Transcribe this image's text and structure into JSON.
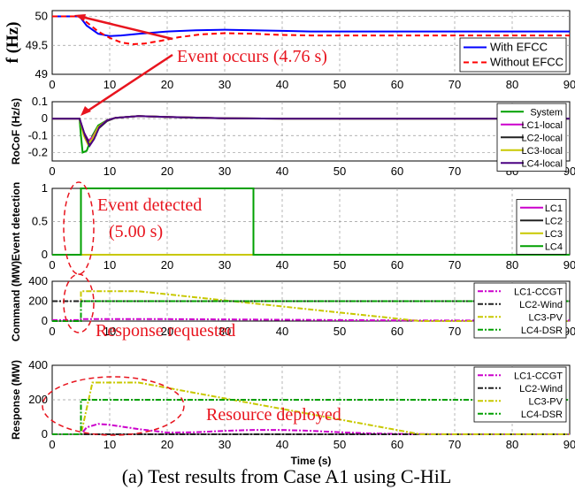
{
  "caption": "(a) Test results from Case A1 using C-HiL",
  "colors": {
    "blue": "#0000ff",
    "red": "#ff0000",
    "green": "#00a000",
    "magenta": "#cc00cc",
    "black": "#222222",
    "olive": "#c8c800",
    "indigo": "#4b0082",
    "annot_red": "#e8141e"
  },
  "chart_data": [
    {
      "type": "line",
      "ylabel": "f (Hz)",
      "xlim": [
        0,
        90
      ],
      "ylim": [
        49,
        50.1
      ],
      "yticks": [
        "49",
        "49.5",
        "50"
      ],
      "xticks": [
        "0",
        "10",
        "20",
        "30",
        "40",
        "50",
        "60",
        "70",
        "80",
        "90"
      ],
      "grid": true,
      "legend": "bottom-right",
      "series": [
        {
          "name": "With EFCC",
          "color": "blue",
          "dash": "none",
          "points": [
            [
              0,
              50
            ],
            [
              4.76,
              50
            ],
            [
              6,
              49.84
            ],
            [
              8,
              49.7
            ],
            [
              10,
              49.66
            ],
            [
              12,
              49.67
            ],
            [
              15,
              49.7
            ],
            [
              20,
              49.74
            ],
            [
              25,
              49.76
            ],
            [
              30,
              49.77
            ],
            [
              35,
              49.76
            ],
            [
              40,
              49.75
            ],
            [
              45,
              49.74
            ],
            [
              50,
              49.74
            ],
            [
              60,
              49.74
            ],
            [
              70,
              49.74
            ],
            [
              80,
              49.74
            ],
            [
              90,
              49.74
            ]
          ]
        },
        {
          "name": "Without EFCC",
          "color": "red",
          "dash": "6,4",
          "points": [
            [
              0,
              50
            ],
            [
              4.76,
              50
            ],
            [
              6,
              49.9
            ],
            [
              8,
              49.74
            ],
            [
              10,
              49.63
            ],
            [
              12,
              49.55
            ],
            [
              14,
              49.52
            ],
            [
              16,
              49.53
            ],
            [
              19,
              49.58
            ],
            [
              22,
              49.64
            ],
            [
              26,
              49.69
            ],
            [
              30,
              49.71
            ],
            [
              35,
              49.7
            ],
            [
              40,
              49.68
            ],
            [
              45,
              49.67
            ],
            [
              50,
              49.67
            ],
            [
              60,
              49.67
            ],
            [
              70,
              49.67
            ],
            [
              80,
              49.67
            ],
            [
              90,
              49.67
            ]
          ]
        }
      ],
      "annotations": [
        {
          "text": "Event occurs (4.76 s)"
        }
      ]
    },
    {
      "type": "line",
      "ylabel": "RoCoF (Hz/s)",
      "xlim": [
        0,
        90
      ],
      "ylim": [
        -0.25,
        0.1
      ],
      "yticks": [
        "0.1",
        "0",
        "-0.1",
        "-0.2"
      ],
      "xticks": [
        "0",
        "10",
        "20",
        "30",
        "40",
        "50",
        "60",
        "70",
        "80",
        "90"
      ],
      "grid": true,
      "legend": "top-right",
      "series": [
        {
          "name": "System",
          "color": "green",
          "points": [
            [
              0,
              0
            ],
            [
              4.76,
              0
            ],
            [
              5,
              -0.1
            ],
            [
              5.3,
              -0.2
            ],
            [
              6,
              -0.19
            ],
            [
              7,
              -0.1
            ],
            [
              8,
              -0.04
            ],
            [
              9.5,
              -0.01
            ],
            [
              11,
              0.005
            ],
            [
              15,
              0.015
            ],
            [
              20,
              0.01
            ],
            [
              25,
              0.005
            ],
            [
              30,
              0.002
            ],
            [
              40,
              0
            ],
            [
              90,
              0
            ]
          ]
        },
        {
          "name": "LC1-local",
          "color": "magenta",
          "points": [
            [
              0,
              0
            ],
            [
              4.76,
              0
            ],
            [
              5.5,
              -0.08
            ],
            [
              6.3,
              -0.13
            ],
            [
              7,
              -0.11
            ],
            [
              8,
              -0.05
            ],
            [
              9.5,
              -0.01
            ],
            [
              11,
              0.005
            ],
            [
              15,
              0.015
            ],
            [
              20,
              0.01
            ],
            [
              30,
              0.002
            ],
            [
              40,
              0
            ],
            [
              90,
              0
            ]
          ]
        },
        {
          "name": "LC2-local",
          "color": "black",
          "points": [
            [
              0,
              0
            ],
            [
              4.76,
              0
            ],
            [
              5.6,
              -0.09
            ],
            [
              6.4,
              -0.14
            ],
            [
              7.2,
              -0.12
            ],
            [
              8,
              -0.06
            ],
            [
              9.5,
              -0.015
            ],
            [
              11,
              0.005
            ],
            [
              15,
              0.015
            ],
            [
              20,
              0.01
            ],
            [
              30,
              0.002
            ],
            [
              40,
              0
            ],
            [
              90,
              0
            ]
          ]
        },
        {
          "name": "LC3-local",
          "color": "olive",
          "points": [
            [
              0,
              0
            ],
            [
              4.76,
              0
            ],
            [
              5.5,
              -0.1
            ],
            [
              6.2,
              -0.15
            ],
            [
              7,
              -0.12
            ],
            [
              8,
              -0.05
            ],
            [
              9.5,
              -0.01
            ],
            [
              11,
              0.005
            ],
            [
              15,
              0.015
            ],
            [
              20,
              0.01
            ],
            [
              30,
              0.002
            ],
            [
              40,
              0
            ],
            [
              90,
              0
            ]
          ]
        },
        {
          "name": "LC4-local",
          "color": "indigo",
          "points": [
            [
              0,
              0
            ],
            [
              4.76,
              0
            ],
            [
              5.7,
              -0.1
            ],
            [
              6.5,
              -0.16
            ],
            [
              7.3,
              -0.12
            ],
            [
              8.2,
              -0.05
            ],
            [
              9.5,
              -0.01
            ],
            [
              11,
              0.005
            ],
            [
              15,
              0.015
            ],
            [
              20,
              0.01
            ],
            [
              30,
              0.002
            ],
            [
              40,
              0
            ],
            [
              90,
              0
            ]
          ]
        }
      ]
    },
    {
      "type": "line",
      "ylabel": "Event detection",
      "xlim": [
        0,
        90
      ],
      "ylim": [
        0,
        1
      ],
      "yticks": [
        "1",
        "0.5",
        "0"
      ],
      "xticks": [
        "0",
        "10",
        "20",
        "30",
        "40",
        "50",
        "60",
        "70",
        "80",
        "90"
      ],
      "grid": true,
      "legend": "right",
      "series": [
        {
          "name": "LC1",
          "color": "magenta",
          "points": [
            [
              0,
              0
            ],
            [
              90,
              0
            ]
          ]
        },
        {
          "name": "LC2",
          "color": "black",
          "points": [
            [
              0,
              0
            ],
            [
              90,
              0
            ]
          ]
        },
        {
          "name": "LC3",
          "color": "olive",
          "points": [
            [
              0,
              0
            ],
            [
              90,
              0
            ]
          ]
        },
        {
          "name": "LC4",
          "color": "green",
          "points": [
            [
              0,
              0
            ],
            [
              5,
              0
            ],
            [
              5,
              1
            ],
            [
              35,
              1
            ],
            [
              35,
              0
            ],
            [
              90,
              0
            ]
          ]
        }
      ],
      "annotations": [
        {
          "text": "Event detected"
        },
        {
          "text": "(5.00 s)"
        }
      ]
    },
    {
      "type": "line",
      "ylabel": "Command (MW)",
      "xlim": [
        0,
        90
      ],
      "ylim": [
        0,
        400
      ],
      "yticks": [
        "400",
        "200",
        "0"
      ],
      "xticks": [
        "0",
        "10",
        "20",
        "30",
        "40",
        "50",
        "60",
        "70",
        "80",
        "90"
      ],
      "grid": true,
      "legend": "top-right",
      "series": [
        {
          "name": "LC1-CCGT",
          "color": "magenta",
          "dash": "6,2,2,2",
          "points": [
            [
              0,
              10
            ],
            [
              5,
              10
            ],
            [
              5,
              20
            ],
            [
              20,
              20
            ],
            [
              35,
              15
            ],
            [
              50,
              10
            ],
            [
              65,
              5
            ],
            [
              90,
              5
            ]
          ]
        },
        {
          "name": "LC2-Wind",
          "color": "black",
          "dash": "6,2,2,2",
          "points": [
            [
              0,
              200
            ],
            [
              90,
              200
            ]
          ]
        },
        {
          "name": "LC3-PV",
          "color": "olive",
          "dash": "6,2,2,2",
          "points": [
            [
              0,
              0
            ],
            [
              5,
              0
            ],
            [
              5,
              300
            ],
            [
              15,
              300
            ],
            [
              64,
              0
            ],
            [
              90,
              0
            ]
          ]
        },
        {
          "name": "LC4-DSR",
          "color": "green",
          "dash": "6,2,2,2",
          "points": [
            [
              0,
              0
            ],
            [
              5,
              0
            ],
            [
              5,
              200
            ],
            [
              90,
              200
            ]
          ]
        }
      ],
      "annotations": [
        {
          "text": "Response requested"
        }
      ]
    },
    {
      "type": "line",
      "ylabel": "Response (MW)",
      "xlabel": "Time (s)",
      "xlim": [
        0,
        90
      ],
      "ylim": [
        0,
        400
      ],
      "yticks": [
        "400",
        "200",
        "0"
      ],
      "xticks": [
        "0",
        "10",
        "20",
        "30",
        "40",
        "50",
        "60",
        "70",
        "80",
        "90"
      ],
      "grid": true,
      "legend": "top-right",
      "series": [
        {
          "name": "LC1-CCGT",
          "color": "magenta",
          "dash": "6,2,2,2",
          "points": [
            [
              0,
              0
            ],
            [
              5,
              0
            ],
            [
              6,
              40
            ],
            [
              8,
              60
            ],
            [
              10,
              55
            ],
            [
              15,
              30
            ],
            [
              20,
              10
            ],
            [
              25,
              12
            ],
            [
              30,
              20
            ],
            [
              35,
              25
            ],
            [
              40,
              25
            ],
            [
              45,
              20
            ],
            [
              50,
              12
            ],
            [
              55,
              5
            ],
            [
              60,
              2
            ],
            [
              70,
              0
            ],
            [
              90,
              0
            ]
          ]
        },
        {
          "name": "LC2-Wind",
          "color": "black",
          "dash": "6,2,2,2",
          "points": [
            [
              0,
              0
            ],
            [
              90,
              0
            ]
          ]
        },
        {
          "name": "LC3-PV",
          "color": "olive",
          "dash": "6,2,2,2",
          "points": [
            [
              0,
              0
            ],
            [
              5,
              0
            ],
            [
              7,
              300
            ],
            [
              15,
              300
            ],
            [
              64,
              0
            ],
            [
              90,
              0
            ]
          ]
        },
        {
          "name": "LC4-DSR",
          "color": "green",
          "dash": "6,2,2,2",
          "points": [
            [
              0,
              0
            ],
            [
              5,
              0
            ],
            [
              5,
              200
            ],
            [
              90,
              200
            ]
          ]
        }
      ],
      "annotations": [
        {
          "text": "Resource deployed"
        }
      ]
    }
  ]
}
